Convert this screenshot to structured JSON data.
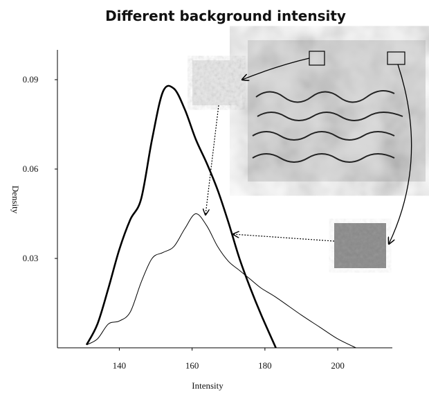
{
  "chart_data": {
    "type": "line",
    "title": "Different background intensity",
    "x_label": "Intensity",
    "y_label": "Density",
    "x": [
      131,
      134,
      137,
      140,
      143,
      146,
      149,
      152,
      155,
      158,
      161,
      164,
      167,
      170,
      173,
      176,
      179,
      183,
      190,
      195,
      200,
      205
    ],
    "series": [
      {
        "color": "#000000",
        "values": [
          0.001,
          0.008,
          0.02,
          0.033,
          0.043,
          0.05,
          0.07,
          0.086,
          0.087,
          0.08,
          0.07,
          0.062,
          0.053,
          0.042,
          0.03,
          0.02,
          0.011,
          0,
          null,
          null,
          null,
          null
        ]
      },
      {
        "color": "#000000",
        "values": [
          0.001,
          0.003,
          0.008,
          0.009,
          0.012,
          0.022,
          0.03,
          0.032,
          0.034,
          0.04,
          0.045,
          0.041,
          0.034,
          0.029,
          0.026,
          0.023,
          0.02,
          0.017,
          0.011,
          0.007,
          0.003,
          0
        ]
      }
    ],
    "xlim": [
      123,
      215
    ],
    "xticks": [
      140,
      160,
      180,
      200
    ],
    "ylim": [
      0,
      0.1
    ],
    "yticks": [
      0.03,
      0.06,
      0.09
    ]
  }
}
